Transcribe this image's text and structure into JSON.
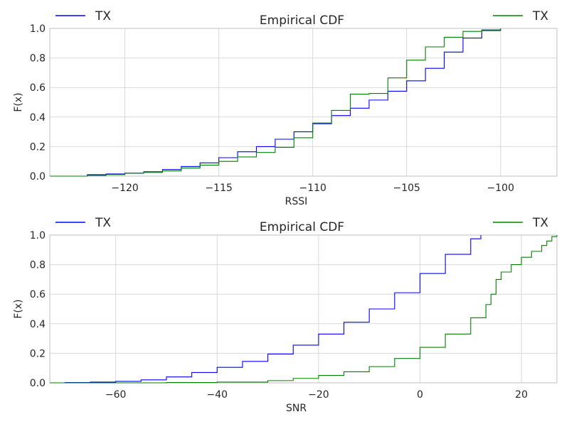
{
  "chart_data": [
    {
      "type": "line",
      "step": true,
      "title": "Empirical CDF",
      "xlabel": "RSSI",
      "ylabel": "F(x)",
      "xlim": [
        -124,
        -97
      ],
      "ylim": [
        0,
        1
      ],
      "xticks": [
        "−120",
        "−115",
        "−110",
        "−105",
        "−100"
      ],
      "xtick_values": [
        -120,
        -115,
        -110,
        -105,
        -100
      ],
      "yticks": [
        "0.0",
        "0.2",
        "0.4",
        "0.6",
        "0.8",
        "1.0"
      ],
      "ytick_values": [
        0,
        0.2,
        0.4,
        0.6,
        0.8,
        1.0
      ],
      "grid": true,
      "legend": "top-left and top-right",
      "series": [
        {
          "name": "TX",
          "color": "#0000ff",
          "legend_position": "top-left",
          "x": [
            -124,
            -122,
            -121,
            -120,
            -119,
            -118,
            -117,
            -116,
            -115,
            -114,
            -113,
            -112,
            -111,
            -110,
            -109,
            -108,
            -107,
            -106,
            -105,
            -104,
            -103,
            -102,
            -101,
            -100
          ],
          "y": [
            0.0,
            0.01,
            0.015,
            0.02,
            0.03,
            0.045,
            0.065,
            0.09,
            0.125,
            0.165,
            0.2,
            0.25,
            0.3,
            0.355,
            0.41,
            0.46,
            0.515,
            0.575,
            0.645,
            0.73,
            0.84,
            0.935,
            0.985,
            1.0
          ]
        },
        {
          "name": "TX",
          "color": "#008000",
          "legend_position": "top-right",
          "x": [
            -124,
            -122,
            -121,
            -120,
            -119,
            -118,
            -117,
            -116,
            -115,
            -114,
            -113,
            -112,
            -111,
            -110,
            -109,
            -108,
            -107,
            -106,
            -105,
            -104,
            -103,
            -102,
            -101,
            -100
          ],
          "y": [
            0.0,
            0.005,
            0.01,
            0.02,
            0.025,
            0.035,
            0.055,
            0.075,
            0.1,
            0.13,
            0.16,
            0.195,
            0.26,
            0.36,
            0.445,
            0.555,
            0.56,
            0.665,
            0.785,
            0.875,
            0.94,
            0.98,
            0.99,
            1.0
          ]
        }
      ]
    },
    {
      "type": "line",
      "step": true,
      "title": "Empirical CDF",
      "xlabel": "SNR",
      "ylabel": "F(x)",
      "xlim": [
        -73,
        27
      ],
      "ylim": [
        0,
        1
      ],
      "xticks": [
        "−60",
        "−40",
        "−20",
        "0",
        "20"
      ],
      "xtick_values": [
        -60,
        -40,
        -20,
        0,
        20
      ],
      "yticks": [
        "0.0",
        "0.2",
        "0.4",
        "0.6",
        "0.8",
        "1.0"
      ],
      "ytick_values": [
        0,
        0.2,
        0.4,
        0.6,
        0.8,
        1.0
      ],
      "grid": true,
      "legend": "top-left and top-right",
      "series": [
        {
          "name": "TX",
          "color": "#0000ff",
          "legend_position": "top-left",
          "x": [
            -73,
            -70,
            -65,
            -60,
            -55,
            -50,
            -45,
            -40,
            -35,
            -30,
            -25,
            -20,
            -15,
            -10,
            -5,
            0,
            5,
            10,
            12
          ],
          "y": [
            0.0,
            0.002,
            0.005,
            0.01,
            0.02,
            0.04,
            0.07,
            0.105,
            0.145,
            0.195,
            0.255,
            0.33,
            0.41,
            0.5,
            0.61,
            0.74,
            0.87,
            0.975,
            1.0
          ]
        },
        {
          "name": "TX",
          "color": "#008000",
          "legend_position": "top-right",
          "x": [
            -73,
            -50,
            -40,
            -30,
            -25,
            -20,
            -15,
            -10,
            -5,
            0,
            5,
            10,
            13,
            14,
            15,
            16,
            18,
            20,
            22,
            24,
            25,
            26,
            27
          ],
          "y": [
            0.0,
            0.002,
            0.005,
            0.015,
            0.03,
            0.05,
            0.075,
            0.11,
            0.165,
            0.24,
            0.33,
            0.44,
            0.53,
            0.6,
            0.7,
            0.75,
            0.8,
            0.85,
            0.89,
            0.93,
            0.96,
            0.99,
            1.0
          ]
        }
      ]
    }
  ]
}
